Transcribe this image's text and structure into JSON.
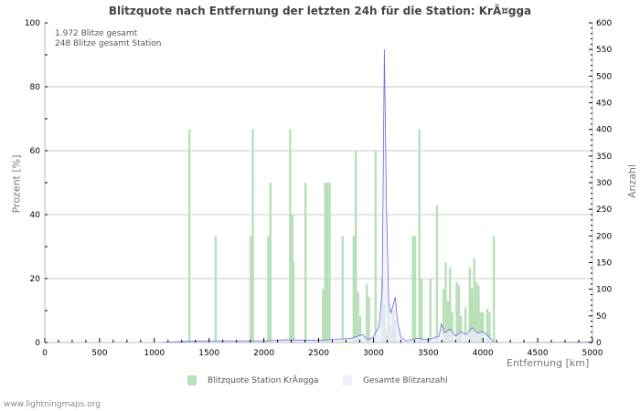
{
  "title": "Blitzquote nach Entfernung der letzten 24h für die Station: KrÃ¤gga",
  "info": {
    "total": "1.972 Blitze gesamt",
    "station": "248 Blitze gesamt Station"
  },
  "axes": {
    "left_label": "Prozent   [%]",
    "right_label": "Anzahl",
    "x_label": "Entfernung   [km]",
    "left_ticks": [
      "0",
      "20",
      "40",
      "60",
      "80",
      "100"
    ],
    "right_ticks": [
      "0",
      "50",
      "100",
      "150",
      "200",
      "250",
      "300",
      "350",
      "400",
      "450",
      "500",
      "550",
      "600"
    ],
    "x_ticks": [
      "0",
      "500",
      "1000",
      "1500",
      "2000",
      "2500",
      "3000",
      "3500",
      "4000",
      "4500",
      "5000"
    ]
  },
  "legend": {
    "station_label": "Blitzquote Station KrÃ¤gga",
    "total_label": "Gesamte Blitzanzahl",
    "station_color": "#b7e0b7",
    "total_color": "#eeeeff",
    "line_color": "#6a6ae0"
  },
  "footer": "www.lightningmaps.org",
  "chart_data": {
    "type": "bar",
    "title": "Blitzquote nach Entfernung der letzten 24h für die Station: KrÃ¤gga",
    "xlabel": "Entfernung [km]",
    "ylabel": "Prozent [%]",
    "y2label": "Anzahl",
    "xlim": [
      0,
      5000
    ],
    "ylim": [
      0,
      100
    ],
    "y2lim": [
      0,
      600
    ],
    "grid": true,
    "legend_position": "bottom",
    "series": [
      {
        "name": "Blitzquote Station KrÃ¤gga",
        "type": "bar",
        "axis": "left",
        "x": [
          1320,
          1560,
          1880,
          1900,
          2040,
          2060,
          2240,
          2260,
          2270,
          2380,
          2540,
          2560,
          2580,
          2600,
          2720,
          2820,
          2840,
          2860,
          2880,
          2940,
          2960,
          3020,
          3080,
          3100,
          3120,
          3140,
          3160,
          3180,
          3200,
          3360,
          3380,
          3420,
          3440,
          3520,
          3580,
          3640,
          3660,
          3680,
          3700,
          3720,
          3760,
          3780,
          3800,
          3840,
          3880,
          3900,
          3920,
          3940,
          3960,
          3980,
          4000,
          4040,
          4060,
          4100
        ],
        "values": [
          66.7,
          33.3,
          33.3,
          66.7,
          33.3,
          50,
          66.7,
          40,
          25,
          50,
          16.7,
          50,
          50,
          50,
          33.3,
          33.3,
          60,
          15.8,
          8.3,
          18.2,
          14.3,
          60,
          20,
          12,
          4,
          12,
          5.5,
          10,
          7,
          33.3,
          33.3,
          66.7,
          20,
          20,
          43,
          16.7,
          25,
          13,
          23.5,
          9.5,
          19,
          18,
          8.5,
          11,
          23.5,
          17,
          26.5,
          19,
          18,
          9.5,
          9.5,
          10.5,
          9.5,
          33.3
        ]
      },
      {
        "name": "Gesamte Blitzanzahl",
        "type": "area",
        "axis": "right",
        "x": [
          0,
          1000,
          1300,
          1500,
          2000,
          2200,
          2500,
          2800,
          2900,
          2950,
          3000,
          3050,
          3080,
          3100,
          3110,
          3120,
          3140,
          3160,
          3180,
          3200,
          3220,
          3250,
          3300,
          3400,
          3500,
          3600,
          3620,
          3650,
          3700,
          3750,
          3800,
          3850,
          3900,
          3950,
          4000,
          4050,
          4100,
          4200,
          5000
        ],
        "values": [
          0,
          0,
          2,
          3,
          3,
          5,
          4,
          8,
          15,
          5,
          10,
          30,
          95,
          550,
          400,
          250,
          75,
          55,
          70,
          85,
          40,
          10,
          3,
          8,
          5,
          12,
          35,
          18,
          25,
          12,
          20,
          15,
          28,
          18,
          20,
          12,
          0,
          0,
          1
        ]
      }
    ]
  }
}
